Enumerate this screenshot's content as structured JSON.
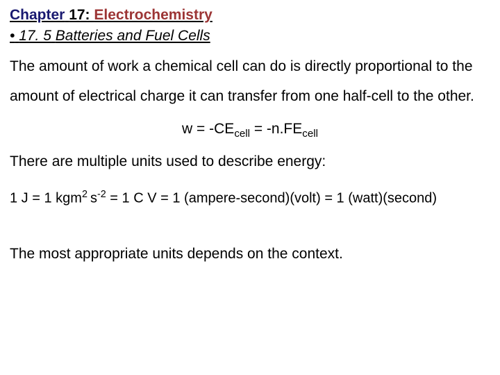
{
  "chapter": {
    "prefix": "Chapter",
    "number": "17:",
    "topic": "Electrochemistry"
  },
  "section": {
    "bullet": "•",
    "number": "17. 5",
    "title": "Batteries and Fuel Cells"
  },
  "paragraph1": "The amount of work a chemical cell can do is directly proportional to the amount of electrical charge it can transfer from one half-cell to the other.",
  "equation": {
    "lhs": "w = -CE",
    "sub1": "cell",
    "mid": " = -n.FE",
    "sub2": "cell"
  },
  "paragraph2": "There are multiple units used to describe energy:",
  "units": {
    "p1": "1 J = 1 kgm",
    "sup1": "2 ",
    "p2": "s",
    "sup2": "-2",
    "p3": " = 1 C V = 1 (ampere-second)(volt) = 1 (watt)(second)"
  },
  "paragraph3": "The most appropriate units depends on the context.",
  "colors": {
    "chapter_prefix": "#191970",
    "chapter_number": "#000000",
    "chapter_topic": "#9c3535",
    "text": "#000000",
    "background": "#ffffff"
  },
  "font_sizes": {
    "title": 21,
    "body": 21,
    "units": 20
  }
}
